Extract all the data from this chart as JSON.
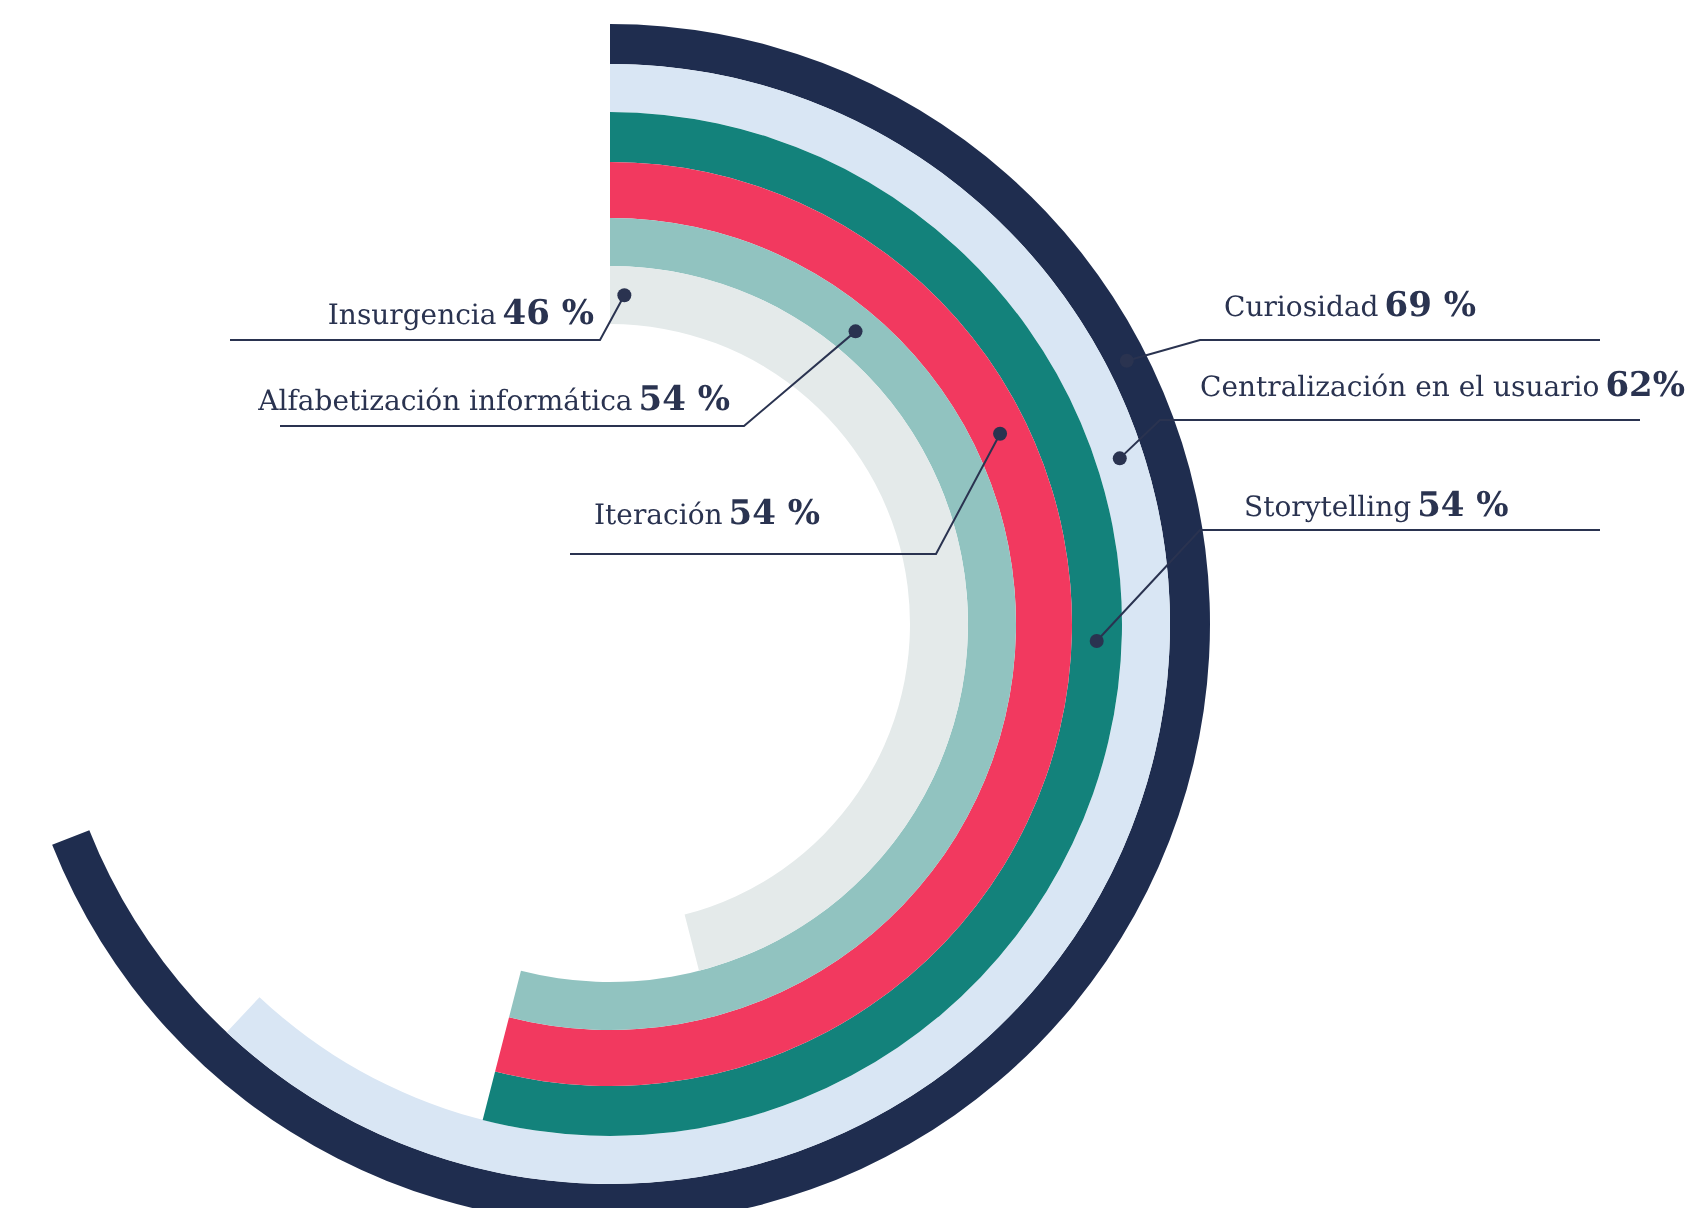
{
  "chart_data": {
    "type": "other",
    "categories": [
      "Curiosidad",
      "Centralización en el usuario",
      "Storytelling",
      "Iteración",
      "Alfabetización informática",
      "Insurgencia"
    ],
    "values": [
      69,
      62,
      54,
      54,
      54,
      46
    ],
    "value_labels": [
      "69 %",
      "62%",
      "54 %",
      "54 %",
      "54 %",
      "46 %"
    ],
    "colors": [
      "#1f2d4f",
      "#d9e6f4",
      "#13827b",
      "#f2395f",
      "#91c3c0",
      "#e4eaea"
    ]
  }
}
